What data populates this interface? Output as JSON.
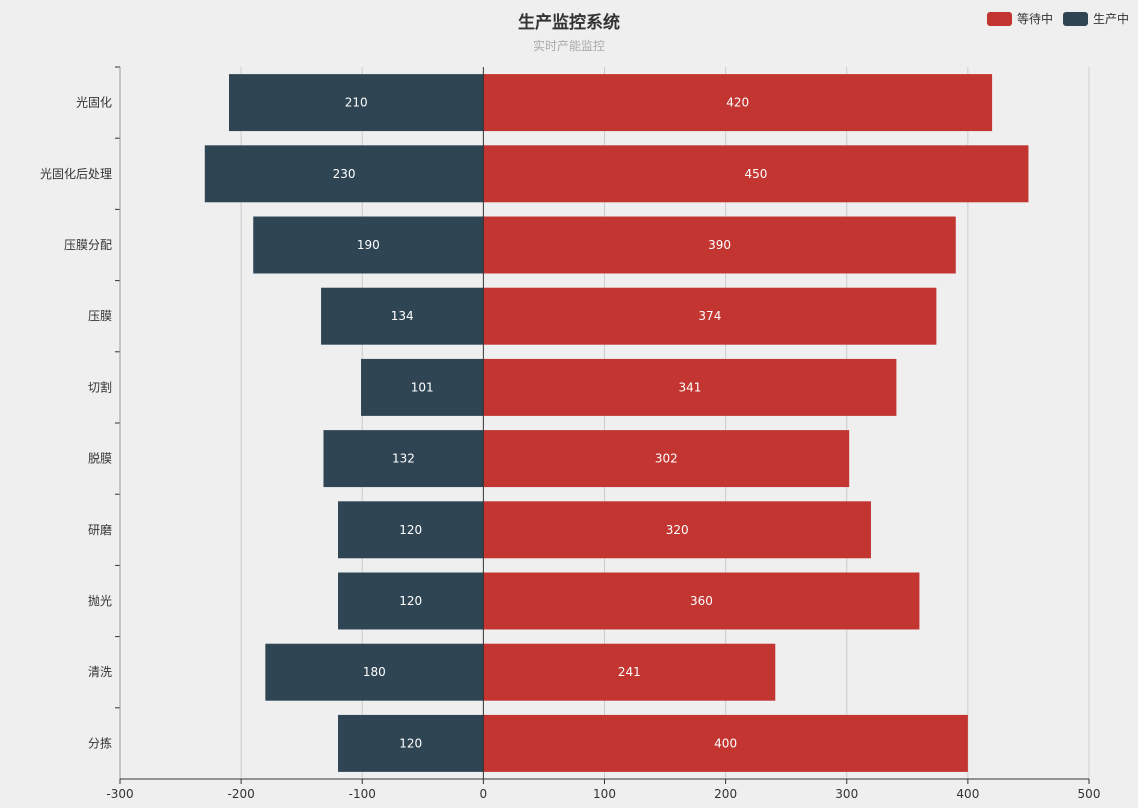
{
  "chart_data": {
    "type": "bar",
    "orientation": "horizontal",
    "title": "生产监控系统",
    "subtitle": "实时产能监控",
    "categories": [
      "光固化",
      "光固化后处理",
      "压膜分配",
      "压膜",
      "切割",
      "脱膜",
      "研磨",
      "抛光",
      "清洗",
      "分拣"
    ],
    "series": [
      {
        "name": "等待中",
        "color": "#c23531",
        "values": [
          420,
          450,
          390,
          374,
          341,
          302,
          320,
          360,
          241,
          400
        ]
      },
      {
        "name": "生产中",
        "color": "#2f4554",
        "values": [
          -210,
          -230,
          -190,
          -134,
          -101,
          -132,
          -120,
          -120,
          -180,
          -120
        ],
        "labels": [
          "210",
          "230",
          "190",
          "134",
          "101",
          "132",
          "120",
          "120",
          "180",
          "120"
        ]
      }
    ],
    "xlim": [
      -300,
      500
    ],
    "xticks": [
      -300,
      -200,
      -100,
      0,
      100,
      200,
      300,
      400,
      500
    ],
    "legend": [
      "等待中",
      "生产中"
    ],
    "grid": true,
    "legend_position": "top-right"
  }
}
